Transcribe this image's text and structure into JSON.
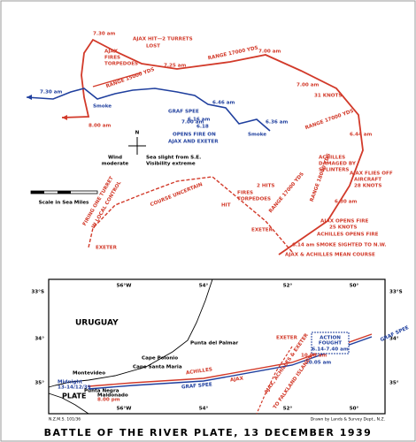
{
  "title": "BATTLE OF THE RIVER PLATE, 13 DECEMBER 1939",
  "battle_diagram": {
    "labels": [
      "7.30 am",
      "AJAX HIT—2 TURRETS",
      "LOST",
      "AJAX",
      "FIRES",
      "TORPEDOES",
      "7.25 am",
      "RANGE 17000 YDS",
      "7.00 am",
      "RANGE 15000 YDS",
      "7.30 am",
      "Smoke",
      "8.00 am",
      "6.46 am",
      "7.00 am",
      "GRAF SPEE",
      "6.16 am",
      "6.18",
      "OPENS FIRE ON",
      "AJAX AND EXETER",
      "Smoke",
      "6.36 am",
      "7.00 am",
      "31 KNOTS",
      "RANGE 17000 YDS",
      "6.44 am",
      "ACHILLES",
      "DAMAGED BY",
      "SPLINTERS",
      "AJAX FLIES OFF",
      "AIRCRAFT",
      "28 KNOTS",
      "RANGE 18000 YDS",
      "6.30 am",
      "AJAX OPENS FIRE",
      "25 KNOTS",
      "ACHILLES OPENS FIRE",
      "6.14 am SMOKE SIGHTED TO N.W.",
      "AJAX & ACHILLES MEAN COURSE",
      "RANGE 17000 YDS",
      "FIRES",
      "TORPEDOES",
      "HIT",
      "2 HITS",
      "EXETER",
      "COURSE UNCERTAIN",
      "FIRING ONE TURRET",
      "IN LOCAL CONTROL",
      "EXETER"
    ],
    "compass": "N",
    "wind": [
      "Wind",
      "moderate"
    ],
    "sea": [
      "Sea slight from S.E.",
      "Visibility extreme"
    ],
    "scale": "Scale in Sea Miles"
  },
  "map": {
    "lon_labels": [
      "56°W",
      "54°",
      "52°",
      "50°"
    ],
    "lat_labels": [
      "33°S",
      "34°",
      "35°"
    ],
    "labels": [
      "URUGUAY",
      "Punta del Palmar",
      "Cape Polonio",
      "Cape Santa Maria",
      "Montevideo",
      "PLATE",
      "Midnight",
      "13-14/12/39",
      "Punta Negra",
      "Maldonado",
      "8.00 pm",
      "ACHILLES",
      "GRAF SPEE",
      "AJAX",
      "EXETER",
      "ACTION",
      "FOUGHT",
      "6.14-7.40 am",
      "10.00 am",
      "10.05 am",
      "AJAX, ACHILLES & EXETER",
      "TO FALKLAND ISLANDS",
      "GRAF SPEE"
    ]
  },
  "footer": {
    "left": "N.Z.M.S. 101/36",
    "right": "Drawn by Lands & Survey Dept., N.Z."
  }
}
